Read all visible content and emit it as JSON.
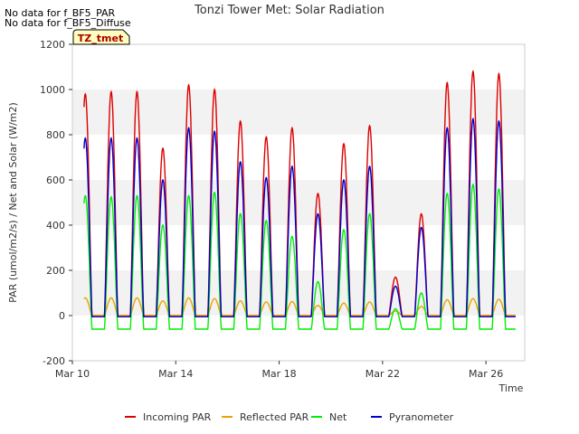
{
  "notes": [
    "No data for f_BF5_PAR",
    "No data for f_BF5_Diffuse"
  ],
  "site_badge": "TZ_tmet",
  "chart_data": {
    "type": "line",
    "title": "Tonzi Tower Met: Solar Radiation",
    "xlabel": "Time",
    "ylabel": "PAR (umol/m2/s) / Net and Solar (W/m2)",
    "xlim": [
      10,
      27.5
    ],
    "ylim": [
      -200,
      1200
    ],
    "yticks": [
      -200,
      0,
      200,
      400,
      600,
      800,
      1000,
      1200
    ],
    "xticks": [
      {
        "value": 10,
        "label": "Mar 10"
      },
      {
        "value": 14,
        "label": "Mar 14"
      },
      {
        "value": 18,
        "label": "Mar 18"
      },
      {
        "value": 22,
        "label": "Mar 22"
      },
      {
        "value": 26,
        "label": "Mar 26"
      }
    ],
    "grid": "horizontal bands",
    "legend_position": "bottom",
    "series": [
      {
        "name": "Incoming PAR",
        "color": "#dd0000",
        "night": 0,
        "days": [
          [
            10.5,
            980
          ],
          [
            11.5,
            990
          ],
          [
            12.5,
            990
          ],
          [
            13.5,
            740
          ],
          [
            14.5,
            1020
          ],
          [
            15.5,
            1000
          ],
          [
            16.5,
            860
          ],
          [
            17.5,
            790
          ],
          [
            18.5,
            830
          ],
          [
            19.5,
            540
          ],
          [
            20.5,
            760
          ],
          [
            21.5,
            840
          ],
          [
            22.5,
            170
          ],
          [
            23.5,
            450
          ],
          [
            24.5,
            1030
          ],
          [
            25.5,
            1080
          ],
          [
            26.5,
            1070
          ]
        ]
      },
      {
        "name": "Reflected PAR",
        "color": "#f0a000",
        "night": 0,
        "days": [
          [
            10.5,
            78
          ],
          [
            11.5,
            78
          ],
          [
            12.5,
            78
          ],
          [
            13.5,
            65
          ],
          [
            14.5,
            78
          ],
          [
            15.5,
            75
          ],
          [
            16.5,
            65
          ],
          [
            17.5,
            60
          ],
          [
            18.5,
            62
          ],
          [
            19.5,
            45
          ],
          [
            20.5,
            55
          ],
          [
            21.5,
            60
          ],
          [
            22.5,
            20
          ],
          [
            23.5,
            40
          ],
          [
            24.5,
            70
          ],
          [
            25.5,
            75
          ],
          [
            26.5,
            72
          ]
        ]
      },
      {
        "name": "Net",
        "color": "#00ee00",
        "night": -60,
        "days": [
          [
            10.5,
            530
          ],
          [
            11.5,
            525
          ],
          [
            12.5,
            530
          ],
          [
            13.5,
            400
          ],
          [
            14.5,
            530
          ],
          [
            15.5,
            545
          ],
          [
            16.5,
            450
          ],
          [
            17.5,
            420
          ],
          [
            18.5,
            350
          ],
          [
            19.5,
            150
          ],
          [
            20.5,
            380
          ],
          [
            21.5,
            450
          ],
          [
            22.5,
            30
          ],
          [
            23.5,
            100
          ],
          [
            24.5,
            540
          ],
          [
            25.5,
            580
          ],
          [
            26.5,
            560
          ]
        ]
      },
      {
        "name": "Pyranometer",
        "color": "#0000cc",
        "night": -5,
        "days": [
          [
            10.5,
            785
          ],
          [
            11.5,
            785
          ],
          [
            12.5,
            785
          ],
          [
            13.5,
            600
          ],
          [
            14.5,
            830
          ],
          [
            15.5,
            815
          ],
          [
            16.5,
            680
          ],
          [
            17.5,
            610
          ],
          [
            18.5,
            660
          ],
          [
            19.5,
            450
          ],
          [
            20.5,
            600
          ],
          [
            21.5,
            660
          ],
          [
            22.5,
            130
          ],
          [
            23.5,
            390
          ],
          [
            24.5,
            830
          ],
          [
            25.5,
            870
          ],
          [
            26.5,
            860
          ]
        ]
      }
    ]
  }
}
